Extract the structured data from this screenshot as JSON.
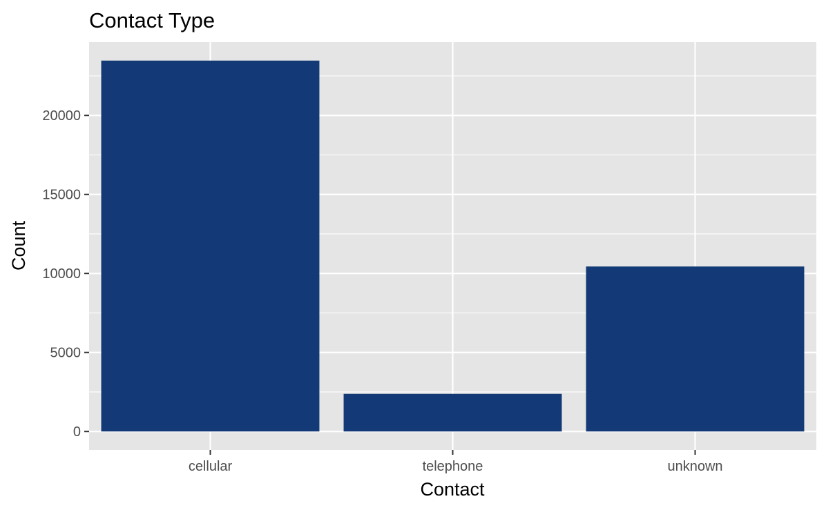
{
  "chart_data": {
    "type": "bar",
    "title": "Contact Type",
    "xlabel": "Contact",
    "ylabel": "Count",
    "categories": [
      "cellular",
      "telephone",
      "unknown"
    ],
    "values": [
      23470,
      2380,
      10440
    ],
    "ylim": [
      -1170,
      24640
    ],
    "yticks": [
      0,
      5000,
      10000,
      15000,
      20000
    ],
    "ytick_labels": [
      "0",
      "5000",
      "10000",
      "15000",
      "20000"
    ],
    "grid": true,
    "legend": "none",
    "colors": {
      "bar": "#133a76",
      "panel_background": "#e5e5e5",
      "grid": "#ffffff",
      "tick_text": "#4d4d4d",
      "tick_mark": "#333333"
    }
  }
}
